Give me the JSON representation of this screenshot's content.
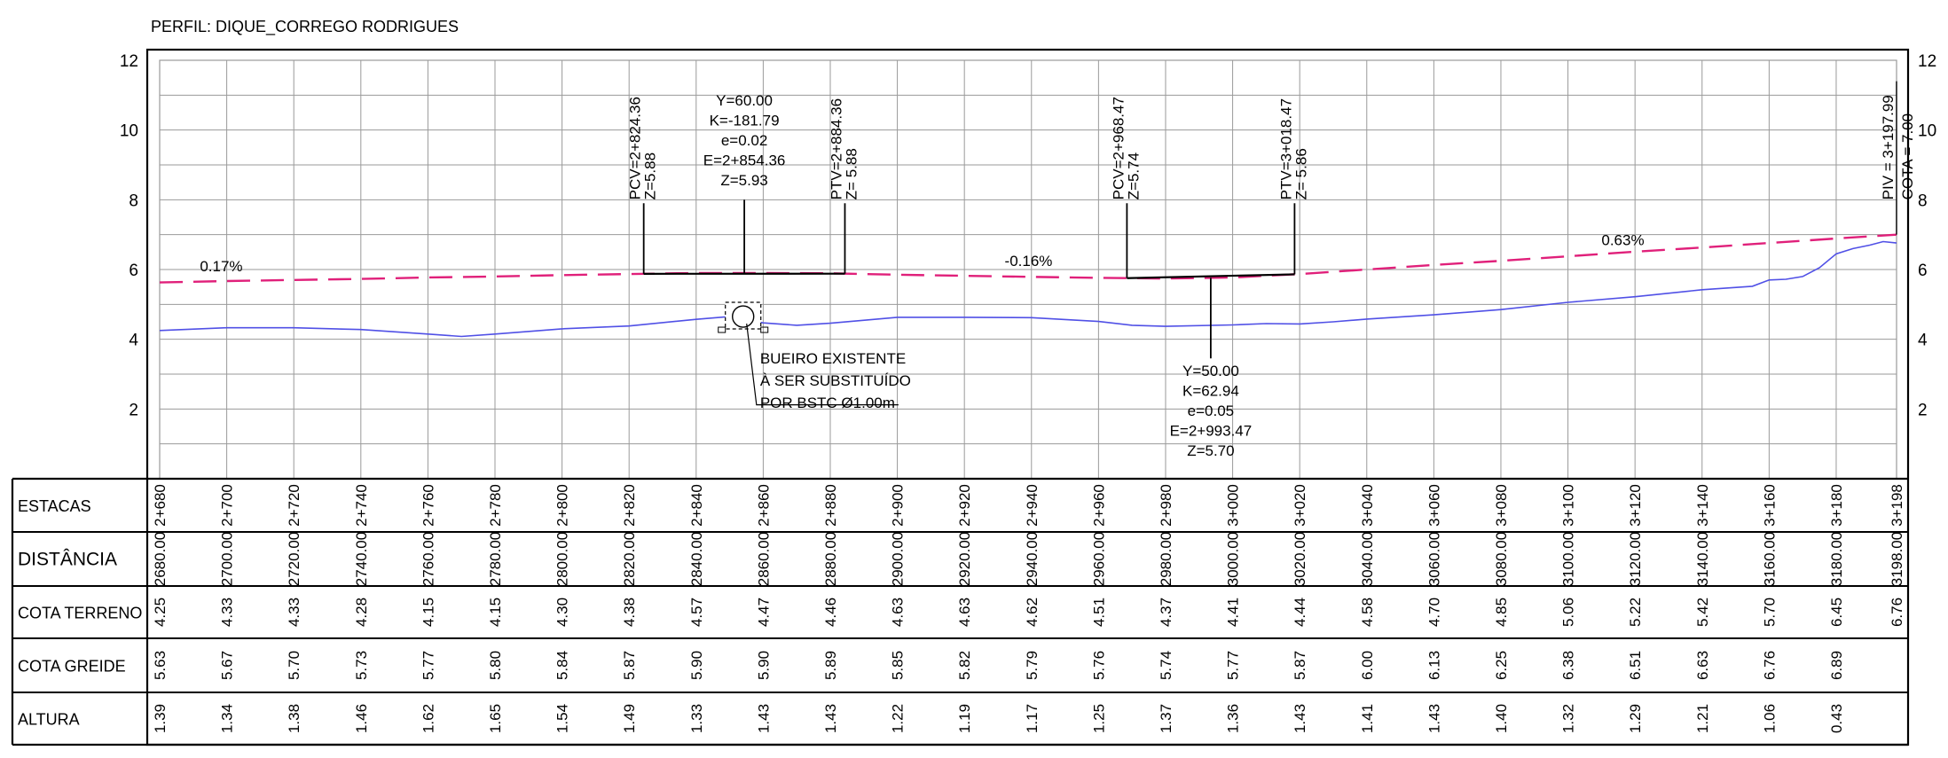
{
  "title": "PERFIL: DIQUE_CORREGO RODRIGUES",
  "colors": {
    "terrain": "#5050e6",
    "grade": "#e0207a",
    "grid": "#9a9a9a",
    "frame": "#000000"
  },
  "chart_data": {
    "type": "line",
    "title": "PERFIL: DIQUE_CORREGO RODRIGUES",
    "xlabel": "",
    "ylabel": "",
    "xlim": [
      2680,
      3198
    ],
    "ylim": [
      0,
      12
    ],
    "y_ticks": [
      2,
      4,
      6,
      8,
      10,
      12
    ],
    "grid": true,
    "series": [
      {
        "key": "terrain",
        "style": "solid",
        "x": [
          2680,
          2700,
          2720,
          2740,
          2760,
          2770,
          2780,
          2800,
          2820,
          2840,
          2850,
          2860,
          2870,
          2880,
          2900,
          2920,
          2940,
          2960,
          2970,
          2980,
          3000,
          3010,
          3020,
          3030,
          3040,
          3060,
          3080,
          3100,
          3120,
          3140,
          3155,
          3160,
          3165,
          3170,
          3175,
          3180,
          3185,
          3190,
          3194,
          3198
        ],
        "y": [
          4.25,
          4.33,
          4.33,
          4.28,
          4.15,
          4.08,
          4.15,
          4.3,
          4.38,
          4.57,
          4.65,
          4.47,
          4.4,
          4.46,
          4.63,
          4.63,
          4.62,
          4.51,
          4.4,
          4.37,
          4.41,
          4.45,
          4.44,
          4.5,
          4.58,
          4.7,
          4.85,
          5.06,
          5.22,
          5.42,
          5.52,
          5.7,
          5.72,
          5.8,
          6.05,
          6.45,
          6.6,
          6.7,
          6.8,
          6.76
        ]
      },
      {
        "key": "grade",
        "style": "dashed",
        "x": [
          2680,
          2700,
          2720,
          2740,
          2760,
          2780,
          2800,
          2820,
          2840,
          2860,
          2880,
          2900,
          2920,
          2940,
          2960,
          2980,
          3000,
          3020,
          3040,
          3060,
          3080,
          3100,
          3120,
          3140,
          3160,
          3180,
          3198
        ],
        "y": [
          5.63,
          5.67,
          5.7,
          5.73,
          5.77,
          5.8,
          5.84,
          5.87,
          5.9,
          5.9,
          5.89,
          5.85,
          5.82,
          5.79,
          5.76,
          5.74,
          5.77,
          5.87,
          6.0,
          6.13,
          6.25,
          6.38,
          6.51,
          6.63,
          6.76,
          6.89,
          7.0
        ]
      }
    ],
    "slopes": [
      {
        "label": "0.17%",
        "x": 2692,
        "y": 5.95
      },
      {
        "label": "-0.16%",
        "x": 2932,
        "y": 6.1
      },
      {
        "label": "0.63%",
        "x": 3110,
        "y": 6.7
      }
    ],
    "vertical_curves": [
      {
        "pcv": {
          "x": 2824.36,
          "labels": [
            "PCV=2+824.36",
            "Z=5.88"
          ]
        },
        "ptv": {
          "x": 2884.36,
          "labels": [
            "PTV=2+884.36",
            "Z= 5.88"
          ]
        },
        "pi_x": 2854.36,
        "pi_y": 5.93,
        "side": "above",
        "info": [
          "Y=60.00",
          "K=-181.79",
          "e=0.02",
          "E=2+854.36",
          "Z=5.93"
        ]
      },
      {
        "pcv": {
          "x": 2968.47,
          "labels": [
            "PCV=2+968.47",
            "Z=5.74"
          ]
        },
        "ptv": {
          "x": 3018.47,
          "labels": [
            "PTV=3+018.47",
            "Z= 5.86"
          ]
        },
        "pi_x": 2993.47,
        "pi_y": 5.7,
        "side": "below",
        "info": [
          "Y=50.00",
          "K=62.94",
          "e=0.05",
          "E=2+993.47",
          "Z=5.70"
        ]
      }
    ],
    "piv": {
      "x": 3197.99,
      "labels": [
        "PIV = 3+197.99",
        "COTA = 7.00"
      ]
    },
    "culvert": {
      "x": 2854,
      "y": 4.55,
      "note": [
        "BUEIRO EXISTENTE",
        "À SER SUBSTITUÍDO",
        "POR BSTC Ø1.00m"
      ]
    }
  },
  "table": {
    "row_labels": [
      "ESTACAS",
      "DISTÂNCIA",
      "COTA TERRENO",
      "COTA GREIDE",
      "ALTURA"
    ],
    "x": [
      2680,
      2700,
      2720,
      2740,
      2760,
      2780,
      2800,
      2820,
      2840,
      2860,
      2880,
      2900,
      2920,
      2940,
      2960,
      2980,
      3000,
      3020,
      3040,
      3060,
      3080,
      3100,
      3120,
      3140,
      3160,
      3180,
      3198
    ],
    "estacas": [
      "2+680",
      "2+700",
      "2+720",
      "2+740",
      "2+760",
      "2+780",
      "2+800",
      "2+820",
      "2+840",
      "2+860",
      "2+880",
      "2+900",
      "2+920",
      "2+940",
      "2+960",
      "2+980",
      "3+000",
      "3+020",
      "3+040",
      "3+060",
      "3+080",
      "3+100",
      "3+120",
      "3+140",
      "3+160",
      "3+180",
      "3+198"
    ],
    "distancia": [
      "2680.00",
      "2700.00",
      "2720.00",
      "2740.00",
      "2760.00",
      "2780.00",
      "2800.00",
      "2820.00",
      "2840.00",
      "2860.00",
      "2880.00",
      "2900.00",
      "2920.00",
      "2940.00",
      "2960.00",
      "2980.00",
      "3000.00",
      "3020.00",
      "3040.00",
      "3060.00",
      "3080.00",
      "3100.00",
      "3120.00",
      "3140.00",
      "3160.00",
      "3180.00",
      "3198.00"
    ],
    "cota_terreno": [
      "4.25",
      "4.33",
      "4.33",
      "4.28",
      "4.15",
      "4.15",
      "4.30",
      "4.38",
      "4.57",
      "4.47",
      "4.46",
      "4.63",
      "4.63",
      "4.62",
      "4.51",
      "4.37",
      "4.41",
      "4.44",
      "4.58",
      "4.70",
      "4.85",
      "5.06",
      "5.22",
      "5.42",
      "5.70",
      "6.45",
      "6.76"
    ],
    "cota_greide": [
      "5.63",
      "5.67",
      "5.70",
      "5.73",
      "5.77",
      "5.80",
      "5.84",
      "5.87",
      "5.90",
      "5.90",
      "5.89",
      "5.85",
      "5.82",
      "5.79",
      "5.76",
      "5.74",
      "5.77",
      "5.87",
      "6.00",
      "6.13",
      "6.25",
      "6.38",
      "6.51",
      "6.63",
      "6.76",
      "6.89",
      ""
    ],
    "altura": [
      "1.39",
      "1.34",
      "1.38",
      "1.46",
      "1.62",
      "1.65",
      "1.54",
      "1.49",
      "1.33",
      "1.43",
      "1.43",
      "1.22",
      "1.19",
      "1.17",
      "1.25",
      "1.37",
      "1.36",
      "1.43",
      "1.41",
      "1.43",
      "1.40",
      "1.32",
      "1.29",
      "1.21",
      "1.06",
      "0.43",
      ""
    ]
  }
}
